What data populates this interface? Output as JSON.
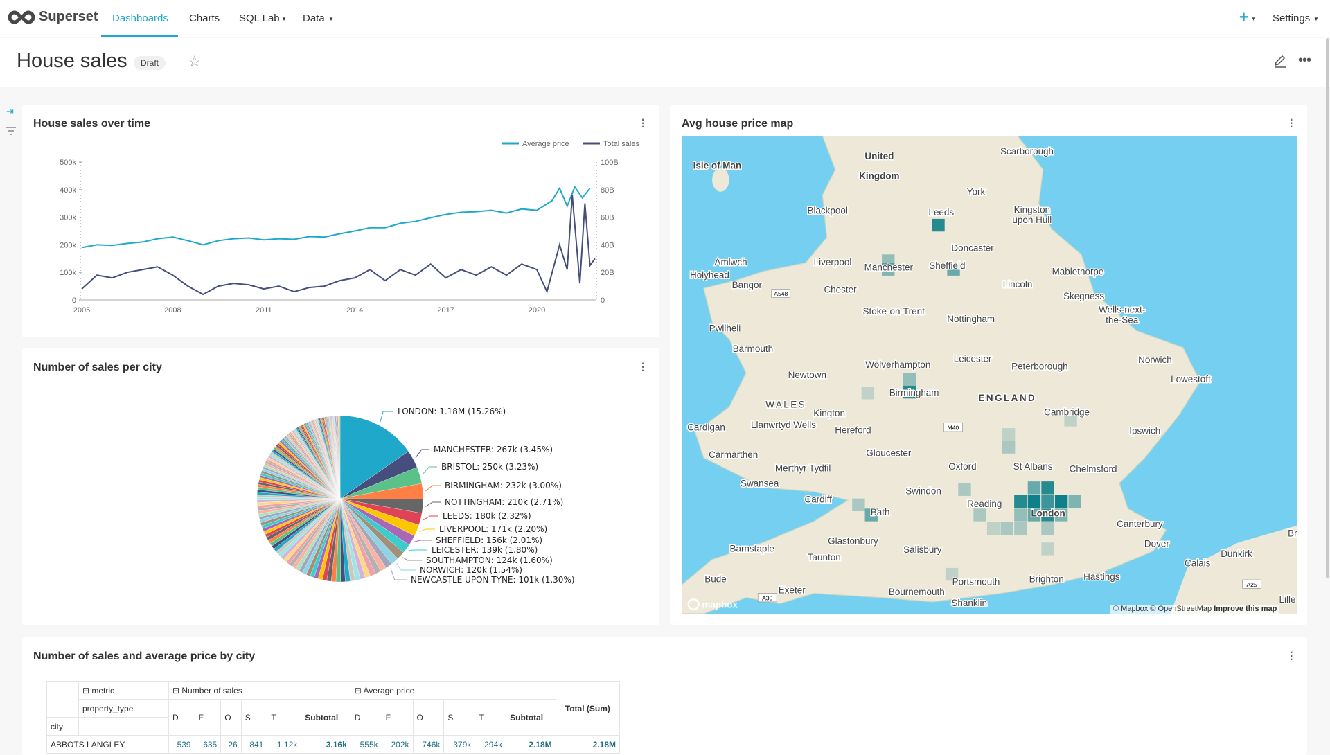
{
  "nav": {
    "brand": "Superset",
    "items": [
      "Dashboards",
      "Charts",
      "SQL Lab",
      "Data"
    ],
    "plus": "+",
    "settings": "Settings",
    "accent": "#20a7c9"
  },
  "header": {
    "title": "House sales",
    "badge": "Draft"
  },
  "line_card": {
    "title": "House sales over time"
  },
  "pie_card": {
    "title": "Number of sales per city"
  },
  "map_card": {
    "title": "Avg house price map",
    "attribution": "© Mapbox © OpenStreetMap",
    "improve": "Improve this map",
    "logo": "mapbox",
    "labels": [
      "United",
      "Kingdom",
      "Isle of Man",
      "Scarborough",
      "York",
      "Leeds",
      "Blackpool",
      "Kingston",
      "upon Hull",
      "Doncaster",
      "Amlwch",
      "Liverpool",
      "Manchester",
      "Sheffield",
      "Mablethorpe",
      "Holyhead",
      "Bangor",
      "Chester",
      "Lincoln",
      "Skegness",
      "Stoke-on-Trent",
      "Wells-next-",
      "the-Sea",
      "Nottingham",
      "Pwllheli",
      "Barmouth",
      "Leicester",
      "Norwich",
      "Wolverhampton",
      "Peterborough",
      "Newtown",
      "Lowestoft",
      "Birmingham",
      "WALES",
      "ENGLAND",
      "Kington",
      "Cambridge",
      "Llanwrtyd Wells",
      "Hereford",
      "Cardigan",
      "Ipswich",
      "Carmarthen",
      "Gloucester",
      "Oxford",
      "St Albans",
      "Chelmsford",
      "Merthyr Tydfil",
      "Swansea",
      "Swindon",
      "Cardiff",
      "Reading",
      "London",
      "Bath",
      "Canterbury",
      "Dover",
      "Glastonbury",
      "Barnstaple",
      "Salisbury",
      "Taunton",
      "Calais",
      "Dunkirk",
      "Hastings",
      "Brighton",
      "Portsmouth",
      "Bude",
      "Exeter",
      "Bournemouth",
      "Shanklin",
      "Br",
      "Lille"
    ],
    "roads": [
      "A548",
      "M40",
      "A30",
      "A25"
    ]
  },
  "table_card": {
    "title": "Number of sales and average price by city",
    "metric_label": "metric",
    "property_label": "property_type",
    "city_label": "city",
    "groups": [
      "Number of sales",
      "Average price"
    ],
    "subcols": [
      "D",
      "F",
      "O",
      "S",
      "T",
      "Subtotal"
    ],
    "total": "Total (Sum)",
    "rows": [
      {
        "city": "ABBOTS LANGLEY",
        "sales": [
          "539",
          "635",
          "26",
          "841",
          "1.12k",
          "3.16k"
        ],
        "price": [
          "555k",
          "202k",
          "746k",
          "379k",
          "294k",
          "2.18M"
        ],
        "total": "2.18M"
      }
    ]
  },
  "chart_data": [
    {
      "type": "line",
      "title": "House sales over time",
      "legend_position": "top-right",
      "series": [
        {
          "name": "Average price",
          "color": "#1fa8c9",
          "axis": "left",
          "x": [
            "2005-01",
            "2005-07",
            "2006-01",
            "2006-07",
            "2007-01",
            "2007-07",
            "2008-01",
            "2008-07",
            "2009-01",
            "2009-07",
            "2010-01",
            "2010-07",
            "2011-01",
            "2011-07",
            "2012-01",
            "2012-07",
            "2013-01",
            "2013-07",
            "2014-01",
            "2014-07",
            "2015-01",
            "2015-07",
            "2016-01",
            "2016-07",
            "2017-01",
            "2017-07",
            "2018-01",
            "2018-07",
            "2019-01",
            "2019-07",
            "2020-01",
            "2020-07",
            "2020-10",
            "2021-01",
            "2021-04",
            "2021-07",
            "2021-10"
          ],
          "y": [
            190000,
            200000,
            198000,
            205000,
            210000,
            222000,
            228000,
            215000,
            200000,
            215000,
            222000,
            225000,
            218000,
            222000,
            220000,
            230000,
            228000,
            240000,
            250000,
            262000,
            262000,
            278000,
            285000,
            298000,
            310000,
            318000,
            320000,
            325000,
            315000,
            330000,
            325000,
            360000,
            405000,
            340000,
            410000,
            370000,
            405000
          ]
        },
        {
          "name": "Total sales",
          "color": "#454e7c",
          "axis": "right",
          "x": [
            "2005-01",
            "2005-07",
            "2006-01",
            "2006-07",
            "2007-01",
            "2007-07",
            "2008-01",
            "2008-07",
            "2009-01",
            "2009-07",
            "2010-01",
            "2010-07",
            "2011-01",
            "2011-07",
            "2012-01",
            "2012-07",
            "2013-01",
            "2013-07",
            "2014-01",
            "2014-07",
            "2015-01",
            "2015-07",
            "2016-01",
            "2016-07",
            "2017-01",
            "2017-07",
            "2018-01",
            "2018-07",
            "2019-01",
            "2019-07",
            "2020-01",
            "2020-05",
            "2020-10",
            "2021-01",
            "2021-03",
            "2021-06",
            "2021-08",
            "2021-10",
            "2021-12"
          ],
          "y": [
            8000000000.0,
            18000000000.0,
            16000000000.0,
            20000000000.0,
            22000000000.0,
            24000000000.0,
            18000000000.0,
            10000000000.0,
            4000000000.0,
            10000000000.0,
            12000000000.0,
            11000000000.0,
            8000000000.0,
            10000000000.0,
            6000000000.0,
            9000000000.0,
            10000000000.0,
            14000000000.0,
            16000000000.0,
            22000000000.0,
            14000000000.0,
            22000000000.0,
            18000000000.0,
            26000000000.0,
            16000000000.0,
            22000000000.0,
            18000000000.0,
            24000000000.0,
            18000000000.0,
            26000000000.0,
            22000000000.0,
            6000000000.0,
            40000000000.0,
            22000000000.0,
            76000000000.0,
            12000000000.0,
            70000000000.0,
            25000000000.0,
            30000000000.0
          ]
        }
      ],
      "x_ticks": [
        "2005",
        "2008",
        "2011",
        "2014",
        "2017",
        "2020"
      ],
      "y_left_ticks": [
        "0",
        "100k",
        "200k",
        "300k",
        "400k",
        "500k"
      ],
      "ylim_left": [
        0,
        500000
      ],
      "y_right_ticks": [
        "0",
        "20B",
        "40B",
        "60B",
        "80B",
        "100B"
      ],
      "ylim_right": [
        0,
        100000000000
      ]
    },
    {
      "type": "pie",
      "title": "Number of sales per city",
      "slices": [
        {
          "label": "LONDON: 1.18M (15.26%)",
          "pct": 15.26,
          "color": "#1fa8c9"
        },
        {
          "label": "MANCHESTER: 267k (3.45%)",
          "pct": 3.45,
          "color": "#454e7c"
        },
        {
          "label": "BRISTOL: 250k (3.23%)",
          "pct": 3.23,
          "color": "#5ac189"
        },
        {
          "label": "BIRMINGHAM: 232k (3.00%)",
          "pct": 3.0,
          "color": "#ff7f44"
        },
        {
          "label": "NOTTINGHAM: 210k (2.71%)",
          "pct": 2.71,
          "color": "#666666"
        },
        {
          "label": "LEEDS: 180k (2.32%)",
          "pct": 2.32,
          "color": "#e04355"
        },
        {
          "label": "LIVERPOOL: 171k (2.20%)",
          "pct": 2.2,
          "color": "#fcc700"
        },
        {
          "label": "SHEFFIELD: 156k (2.01%)",
          "pct": 2.01,
          "color": "#a868b7"
        },
        {
          "label": "LEICESTER: 139k (1.80%)",
          "pct": 1.8,
          "color": "#3ccccb"
        },
        {
          "label": "SOUTHAMPTON: 124k (1.60%)",
          "pct": 1.6,
          "color": "#a38f79"
        },
        {
          "label": "NORWICH: 120k (1.54%)",
          "pct": 1.54,
          "color": "#8fd3e4"
        },
        {
          "label": "NEWCASTLE UPON TYNE: 101k (1.30%)",
          "pct": 1.3,
          "color": "#a1a6bd"
        }
      ],
      "other_slices_pct": [
        1.2,
        1.1,
        1.1,
        1.0,
        1.0,
        1.0,
        0.95,
        0.95,
        0.9,
        0.9,
        0.9,
        0.85,
        0.85,
        0.85,
        0.8,
        0.8,
        0.8,
        0.8,
        0.75,
        0.75,
        0.75,
        0.75,
        0.7,
        0.7,
        0.7,
        0.7,
        0.7,
        0.65,
        0.65,
        0.65,
        0.65,
        0.65,
        0.6,
        0.6,
        0.6,
        0.6,
        0.6,
        0.6,
        0.55,
        0.55,
        0.55,
        0.55,
        0.55,
        0.55,
        0.5,
        0.5,
        0.5,
        0.5,
        0.5,
        0.5,
        0.5,
        0.45,
        0.45,
        0.45,
        0.45,
        0.45,
        0.45,
        0.45,
        0.4,
        0.4,
        0.4,
        0.4,
        0.4,
        0.4,
        0.4,
        0.4,
        0.4,
        0.35,
        0.35,
        0.35,
        0.35,
        0.35,
        0.35,
        0.35,
        0.35,
        0.35,
        0.3,
        0.3,
        0.3,
        0.3,
        0.3,
        0.3,
        0.3,
        0.3,
        0.3,
        0.3,
        0.3,
        0.25,
        0.25,
        0.25,
        0.25,
        0.25,
        0.25,
        0.25,
        0.25,
        0.25,
        0.25,
        0.25,
        0.25,
        0.2,
        0.2,
        0.2,
        0.2,
        0.2,
        0.2,
        0.2,
        0.2,
        0.2,
        0.2,
        0.2,
        0.2,
        0.2,
        0.2,
        0.15,
        0.15,
        0.15,
        0.15,
        0.15,
        0.15,
        0.15,
        0.15,
        0.15,
        0.15,
        0.15,
        0.15,
        0.15,
        0.15,
        0.1,
        0.1,
        0.1,
        0.1,
        0.1,
        0.1,
        0.1,
        0.1,
        0.1,
        0.1
      ],
      "other_colors": [
        "#fdb2a1",
        "#b2b2b2",
        "#efa1aa",
        "#fdd985",
        "#d3b3da",
        "#9ee5e5",
        "#d1c6bc",
        "#1fa8c9",
        "#454e7c",
        "#5ac189",
        "#ff7f44",
        "#666666",
        "#e04355",
        "#fcc700",
        "#a868b7",
        "#3ccccb",
        "#a38f79",
        "#8fd3e4",
        "#a1a6bd",
        "#acE1c4"
      ]
    }
  ]
}
